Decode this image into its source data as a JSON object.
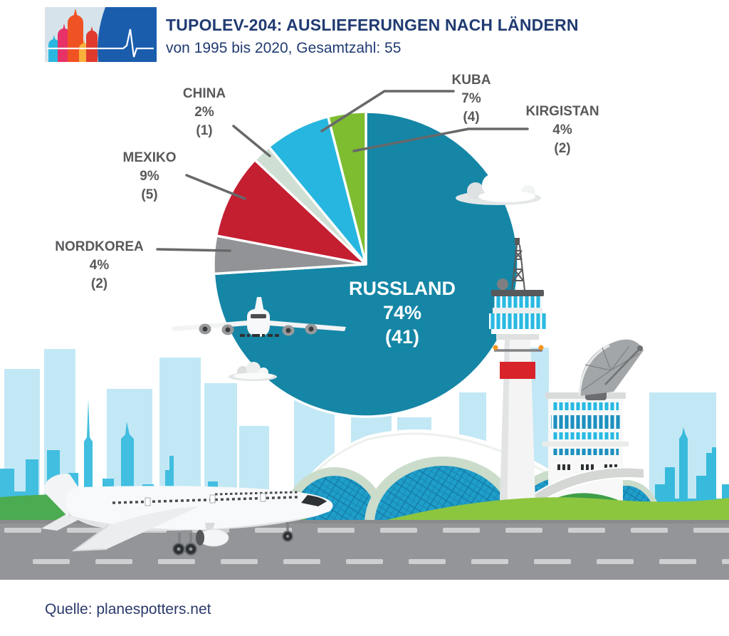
{
  "header": {
    "title": "TUPOLEV-204: AUSLIEFERUNGEN NACH LÄNDERN",
    "subtitle": "von 1995 bis 2020, Gesamtzahl: 55",
    "logo": "moscow-cathedral-pulse-logo"
  },
  "source": {
    "text": "Quelle: planespotters.net"
  },
  "chart_data": {
    "type": "pie",
    "title": "Tupolev-204: Auslieferungen nach Ländern",
    "period": "von 1995 bis 2020",
    "total": 55,
    "start_angle_deg": 0,
    "direction": "clockwise",
    "slices": [
      {
        "label": "RUSSLAND",
        "percent": 74,
        "count": 41,
        "color": "#1586A6",
        "label_color": "#FFFFFF"
      },
      {
        "label": "NORDKOREA",
        "percent": 4,
        "count": 2,
        "color": "#919396",
        "label_color": "#58595B"
      },
      {
        "label": "MEXIKO",
        "percent": 9,
        "count": 5,
        "color": "#C41E31",
        "label_color": "#58595B"
      },
      {
        "label": "CHINA",
        "percent": 2,
        "count": 1,
        "color": "#CFDFD3",
        "label_color": "#58595B"
      },
      {
        "label": "KUBA",
        "percent": 7,
        "count": 4,
        "color": "#27B6DF",
        "label_color": "#58595B"
      },
      {
        "label": "KIRGISTAN",
        "percent": 4,
        "count": 2,
        "color": "#7EBC30",
        "label_color": "#58595B"
      }
    ]
  },
  "colors": {
    "title_navy": "#203B72",
    "label_gray": "#58595B",
    "leader_line": "#66686A",
    "far_skyline": "#C3E8F5",
    "near_skyline": "#41BEE0",
    "lime_hill": "#8CC63F",
    "green_strip": "#4BAB51",
    "road": "#939598",
    "glass_blue": "#1E9EC9",
    "tower_red": "#D8232B",
    "logo_blue": "#1A5DAD"
  }
}
